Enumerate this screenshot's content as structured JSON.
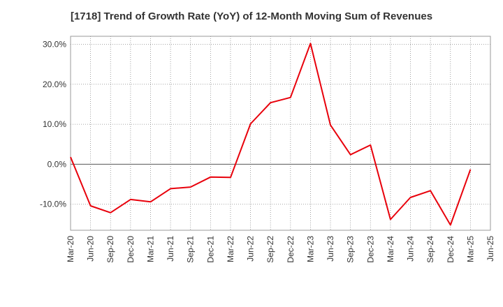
{
  "chart_data": {
    "type": "line",
    "title": "[1718]  Trend of Growth Rate (YoY) of 12-Month Moving Sum of Revenues",
    "xlabel": "",
    "ylabel": "",
    "x_ticks": [
      "Mar-20",
      "Jun-20",
      "Sep-20",
      "Dec-20",
      "Mar-21",
      "Jun-21",
      "Sep-21",
      "Dec-21",
      "Mar-22",
      "Jun-22",
      "Sep-22",
      "Dec-22",
      "Mar-23",
      "Jun-23",
      "Sep-23",
      "Dec-23",
      "Mar-24",
      "Jun-24",
      "Sep-24",
      "Dec-24",
      "Mar-25",
      "Jun-25"
    ],
    "y_ticks": [
      30,
      20,
      10,
      0,
      -10
    ],
    "y_tick_labels": [
      "30.0%",
      "20.0%",
      "10.0%",
      "0.0%",
      "-10.0%"
    ],
    "ylim": [
      -16.5,
      32
    ],
    "grid": true,
    "series": [
      {
        "color": "#e8000b",
        "x": [
          "Mar-20",
          "Jun-20",
          "Sep-20",
          "Dec-20",
          "Mar-21",
          "Jun-21",
          "Sep-21",
          "Dec-21",
          "Mar-22",
          "Jun-22",
          "Sep-22",
          "Dec-22",
          "Mar-23",
          "Jun-23",
          "Sep-23",
          "Dec-23",
          "Mar-24",
          "Jun-24",
          "Sep-24",
          "Dec-24",
          "Mar-25"
        ],
        "values": [
          1.8,
          -10.4,
          -12.1,
          -8.8,
          -9.4,
          -6.1,
          -5.7,
          -3.2,
          -3.3,
          10.1,
          15.4,
          16.7,
          30.2,
          9.8,
          2.4,
          4.8,
          -13.8,
          -8.3,
          -6.6,
          -15.2,
          -1.3
        ]
      }
    ]
  }
}
